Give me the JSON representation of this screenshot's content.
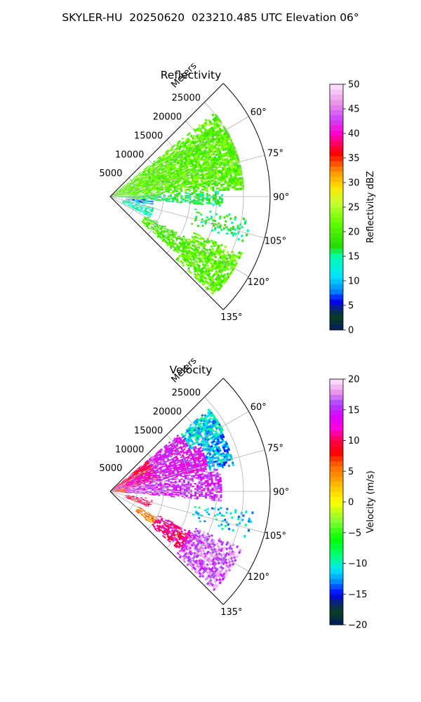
{
  "figure": {
    "title": "SKYLER-HU  20250620  023210.485 UTC Elevation 06°"
  },
  "chart_data": [
    {
      "type": "heatmap",
      "projection": "polar-sector",
      "title": "Reflectivity",
      "radial_axis_label": "Meters",
      "radial_ticks": [
        5000,
        10000,
        15000,
        20000,
        25000
      ],
      "radial_tick_labels": [
        "5000",
        "10000",
        "15000",
        "20000",
        "25000"
      ],
      "radial_range": [
        0,
        30000
      ],
      "azimuth_range_deg": [
        45,
        135
      ],
      "azimuth_ticks_deg": [
        60,
        75,
        90,
        105,
        120,
        135
      ],
      "azimuth_tick_labels": [
        "60°",
        "75°",
        "90°",
        "105°",
        "120°",
        "135°"
      ],
      "grid": true,
      "colorbar": {
        "label": "Reflectivity dBZ",
        "range": [
          0,
          50
        ],
        "ticks": [
          0,
          5,
          10,
          15,
          20,
          25,
          30,
          35,
          40,
          45,
          50
        ],
        "tick_labels": [
          "0",
          "5",
          "10",
          "15",
          "20",
          "25",
          "30",
          "35",
          "40",
          "45",
          "50"
        ],
        "palette": "NWSRef"
      },
      "regions": [
        {
          "az": [
            51,
            87
          ],
          "r": [
            0,
            25000
          ],
          "value": 21,
          "density": 0.85
        },
        {
          "az": [
            87,
            95
          ],
          "r": [
            0,
            21000
          ],
          "value": 17,
          "density": 0.65
        },
        {
          "az": [
            95,
            103
          ],
          "r": [
            3000,
            8000
          ],
          "value": 9,
          "density": 0.6
        },
        {
          "az": [
            104,
            118
          ],
          "r": [
            2500,
            8500
          ],
          "value": 14,
          "density": 0.7
        },
        {
          "az": [
            118,
            130
          ],
          "r": [
            7500,
            17500
          ],
          "value": 20,
          "density": 0.7
        },
        {
          "az": [
            113,
            133
          ],
          "r": [
            17000,
            27000
          ],
          "value": 21,
          "density": 0.75
        },
        {
          "az": [
            98,
            108
          ],
          "r": [
            16000,
            27000
          ],
          "value": 17,
          "density": 0.25
        }
      ]
    },
    {
      "type": "heatmap",
      "projection": "polar-sector",
      "title": "Velocity",
      "radial_axis_label": "Meters",
      "radial_ticks": [
        5000,
        10000,
        15000,
        20000,
        25000
      ],
      "radial_tick_labels": [
        "5000",
        "10000",
        "15000",
        "20000",
        "25000"
      ],
      "radial_range": [
        0,
        30000
      ],
      "azimuth_range_deg": [
        45,
        135
      ],
      "azimuth_ticks_deg": [
        60,
        75,
        90,
        105,
        120,
        135
      ],
      "azimuth_tick_labels": [
        "60°",
        "75°",
        "90°",
        "105°",
        "120°",
        "135°"
      ],
      "grid": true,
      "colorbar": {
        "label": "Velocity (m/s)",
        "range": [
          -20,
          20
        ],
        "ticks": [
          -20,
          -15,
          -10,
          -5,
          0,
          5,
          10,
          15,
          20
        ],
        "tick_labels": [
          "−20",
          "−15",
          "−10",
          "−5",
          "0",
          "5",
          "10",
          "15",
          "20"
        ],
        "palette": "NWSVel"
      },
      "regions": [
        {
          "az": [
            50,
            62
          ],
          "r": [
            0,
            9000
          ],
          "value": 10,
          "density": 0.9
        },
        {
          "az": [
            50,
            62
          ],
          "r": [
            9000,
            17000
          ],
          "value": 14,
          "density": 0.85
        },
        {
          "az": [
            50,
            62
          ],
          "r": [
            17000,
            24000
          ],
          "value": -11,
          "density": 0.8
        },
        {
          "az": [
            62,
            78
          ],
          "r": [
            0,
            9000
          ],
          "value": 12,
          "density": 0.9
        },
        {
          "az": [
            62,
            78
          ],
          "r": [
            9000,
            19000
          ],
          "value": 14,
          "density": 0.85
        },
        {
          "az": [
            62,
            78
          ],
          "r": [
            19000,
            23500
          ],
          "value": -12,
          "density": 0.75
        },
        {
          "az": [
            78,
            95
          ],
          "r": [
            0,
            3000
          ],
          "value": 7,
          "density": 0.9
        },
        {
          "az": [
            78,
            95
          ],
          "r": [
            3000,
            21000
          ],
          "value": 15,
          "density": 0.7
        },
        {
          "az": [
            100,
            112
          ],
          "r": [
            3000,
            8000
          ],
          "value": 10,
          "density": 0.6
        },
        {
          "az": [
            118,
            128
          ],
          "r": [
            6000,
            10000
          ],
          "value": 5,
          "density": 0.6
        },
        {
          "az": [
            116,
            130
          ],
          "r": [
            10000,
            18000
          ],
          "value": 11,
          "density": 0.75
        },
        {
          "az": [
            113,
            133
          ],
          "r": [
            17000,
            27000
          ],
          "value": 17,
          "density": 0.75
        },
        {
          "az": [
            98,
            108
          ],
          "r": [
            16000,
            27000
          ],
          "value": -11,
          "density": 0.25
        }
      ]
    }
  ]
}
